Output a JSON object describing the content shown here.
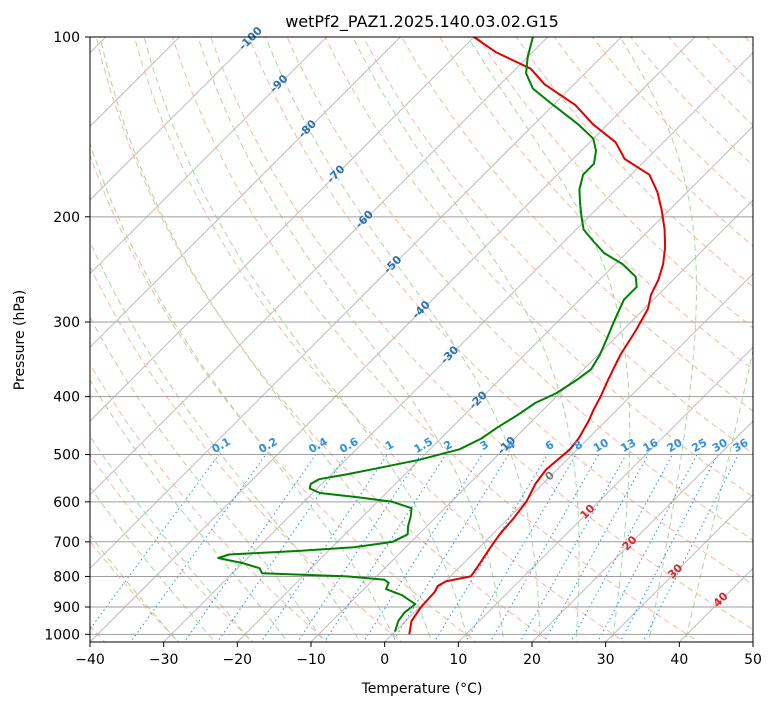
{
  "chart_data": {
    "type": "line",
    "title": "wetPf2_PAZ1.2025.140.03.02.G15",
    "xlabel": "Temperature (°C)",
    "ylabel": "Pressure (hPa)",
    "xlim": [
      -40,
      50
    ],
    "ylim": [
      1030,
      100
    ],
    "y_scale": "log",
    "x_ticks": [
      "−40",
      "−30",
      "−20",
      "−10",
      "0",
      "10",
      "20",
      "30",
      "40",
      "50"
    ],
    "y_ticks": [
      "100",
      "200",
      "300",
      "400",
      "500",
      "600",
      "700",
      "800",
      "900",
      "1000"
    ],
    "grid": true,
    "isotherm_labels": [
      "-100",
      "-90",
      "-80",
      "-70",
      "-60",
      "-50",
      "-40",
      "-30",
      "-20",
      "-10",
      "0",
      "10",
      "20",
      "30",
      "40"
    ],
    "mixing_ratio_labels": [
      "0.1",
      "0.2",
      "0.4",
      "0.6",
      "1",
      "1.5",
      "2",
      "3",
      "4",
      "6",
      "8",
      "10",
      "13",
      "16",
      "20",
      "25",
      "30",
      "36"
    ],
    "series": [
      {
        "color": "#e00000",
        "values": [
          {
            "x": 2.3,
            "y": 1000
          },
          {
            "x": 0.8,
            "y": 950
          },
          {
            "x": 0.2,
            "y": 900
          },
          {
            "x": 0.0,
            "y": 850
          },
          {
            "x": -0.4,
            "y": 830
          },
          {
            "x": 0.1,
            "y": 815
          },
          {
            "x": 2.8,
            "y": 800
          },
          {
            "x": 2.4,
            "y": 770
          },
          {
            "x": 1.6,
            "y": 720
          },
          {
            "x": 1.0,
            "y": 680
          },
          {
            "x": 0.7,
            "y": 640
          },
          {
            "x": 0.2,
            "y": 600
          },
          {
            "x": -1.0,
            "y": 560
          },
          {
            "x": -1.5,
            "y": 530
          },
          {
            "x": -1.0,
            "y": 490
          },
          {
            "x": -1.3,
            "y": 470
          },
          {
            "x": -2.3,
            "y": 440
          },
          {
            "x": -3.2,
            "y": 420
          },
          {
            "x": -4.0,
            "y": 400
          },
          {
            "x": -5.0,
            "y": 380
          },
          {
            "x": -6.0,
            "y": 360
          },
          {
            "x": -7.0,
            "y": 340
          },
          {
            "x": -8.2,
            "y": 310
          },
          {
            "x": -9.5,
            "y": 285
          },
          {
            "x": -11.0,
            "y": 270
          },
          {
            "x": -12.0,
            "y": 255
          },
          {
            "x": -13.5,
            "y": 240
          },
          {
            "x": -15.5,
            "y": 225
          },
          {
            "x": -18.0,
            "y": 210
          },
          {
            "x": -21.0,
            "y": 195
          },
          {
            "x": -24.0,
            "y": 182
          },
          {
            "x": -27.5,
            "y": 170
          },
          {
            "x": -33.0,
            "y": 160
          },
          {
            "x": -36.5,
            "y": 150
          },
          {
            "x": -42.0,
            "y": 140
          },
          {
            "x": -47.0,
            "y": 130
          },
          {
            "x": -54.0,
            "y": 120
          },
          {
            "x": -58.0,
            "y": 113
          },
          {
            "x": -65.0,
            "y": 106
          },
          {
            "x": -70.0,
            "y": 100
          }
        ]
      },
      {
        "color": "#008000",
        "values": [
          {
            "x": 0.0,
            "y": 990
          },
          {
            "x": -1.0,
            "y": 950
          },
          {
            "x": -1.3,
            "y": 920
          },
          {
            "x": -1.0,
            "y": 890
          },
          {
            "x": -4.0,
            "y": 860
          },
          {
            "x": -7.0,
            "y": 840
          },
          {
            "x": -7.5,
            "y": 820
          },
          {
            "x": -8.5,
            "y": 810
          },
          {
            "x": -14.0,
            "y": 800
          },
          {
            "x": -26.0,
            "y": 790
          },
          {
            "x": -27.0,
            "y": 775
          },
          {
            "x": -30.0,
            "y": 760
          },
          {
            "x": -34.0,
            "y": 745
          },
          {
            "x": -33.0,
            "y": 735
          },
          {
            "x": -24.0,
            "y": 725
          },
          {
            "x": -17.0,
            "y": 715
          },
          {
            "x": -12.5,
            "y": 700
          },
          {
            "x": -11.5,
            "y": 680
          },
          {
            "x": -12.5,
            "y": 660
          },
          {
            "x": -13.5,
            "y": 635
          },
          {
            "x": -14.5,
            "y": 615
          },
          {
            "x": -18.0,
            "y": 600
          },
          {
            "x": -23.0,
            "y": 590
          },
          {
            "x": -29.0,
            "y": 580
          },
          {
            "x": -31.0,
            "y": 570
          },
          {
            "x": -31.5,
            "y": 560
          },
          {
            "x": -31.0,
            "y": 550
          },
          {
            "x": -28.0,
            "y": 540
          },
          {
            "x": -24.0,
            "y": 525
          },
          {
            "x": -20.0,
            "y": 510
          },
          {
            "x": -16.0,
            "y": 490
          },
          {
            "x": -14.5,
            "y": 470
          },
          {
            "x": -13.8,
            "y": 450
          },
          {
            "x": -12.8,
            "y": 430
          },
          {
            "x": -12.0,
            "y": 410
          },
          {
            "x": -10.5,
            "y": 395
          },
          {
            "x": -9.5,
            "y": 375
          },
          {
            "x": -9.0,
            "y": 360
          },
          {
            "x": -9.8,
            "y": 340
          },
          {
            "x": -11.0,
            "y": 320
          },
          {
            "x": -12.0,
            "y": 305
          },
          {
            "x": -13.0,
            "y": 290
          },
          {
            "x": -14.0,
            "y": 275
          },
          {
            "x": -14.0,
            "y": 262
          },
          {
            "x": -15.5,
            "y": 252
          },
          {
            "x": -19.0,
            "y": 240
          },
          {
            "x": -23.0,
            "y": 230
          },
          {
            "x": -26.0,
            "y": 220
          },
          {
            "x": -29.0,
            "y": 210
          },
          {
            "x": -31.0,
            "y": 200
          },
          {
            "x": -33.0,
            "y": 190
          },
          {
            "x": -35.0,
            "y": 180
          },
          {
            "x": -36.5,
            "y": 170
          },
          {
            "x": -36.5,
            "y": 163
          },
          {
            "x": -38.0,
            "y": 155
          },
          {
            "x": -40.0,
            "y": 148
          },
          {
            "x": -44.0,
            "y": 140
          },
          {
            "x": -50.0,
            "y": 130
          },
          {
            "x": -55.0,
            "y": 122
          },
          {
            "x": -58.0,
            "y": 115
          },
          {
            "x": -60.0,
            "y": 108
          },
          {
            "x": -62.0,
            "y": 100
          }
        ]
      }
    ]
  }
}
